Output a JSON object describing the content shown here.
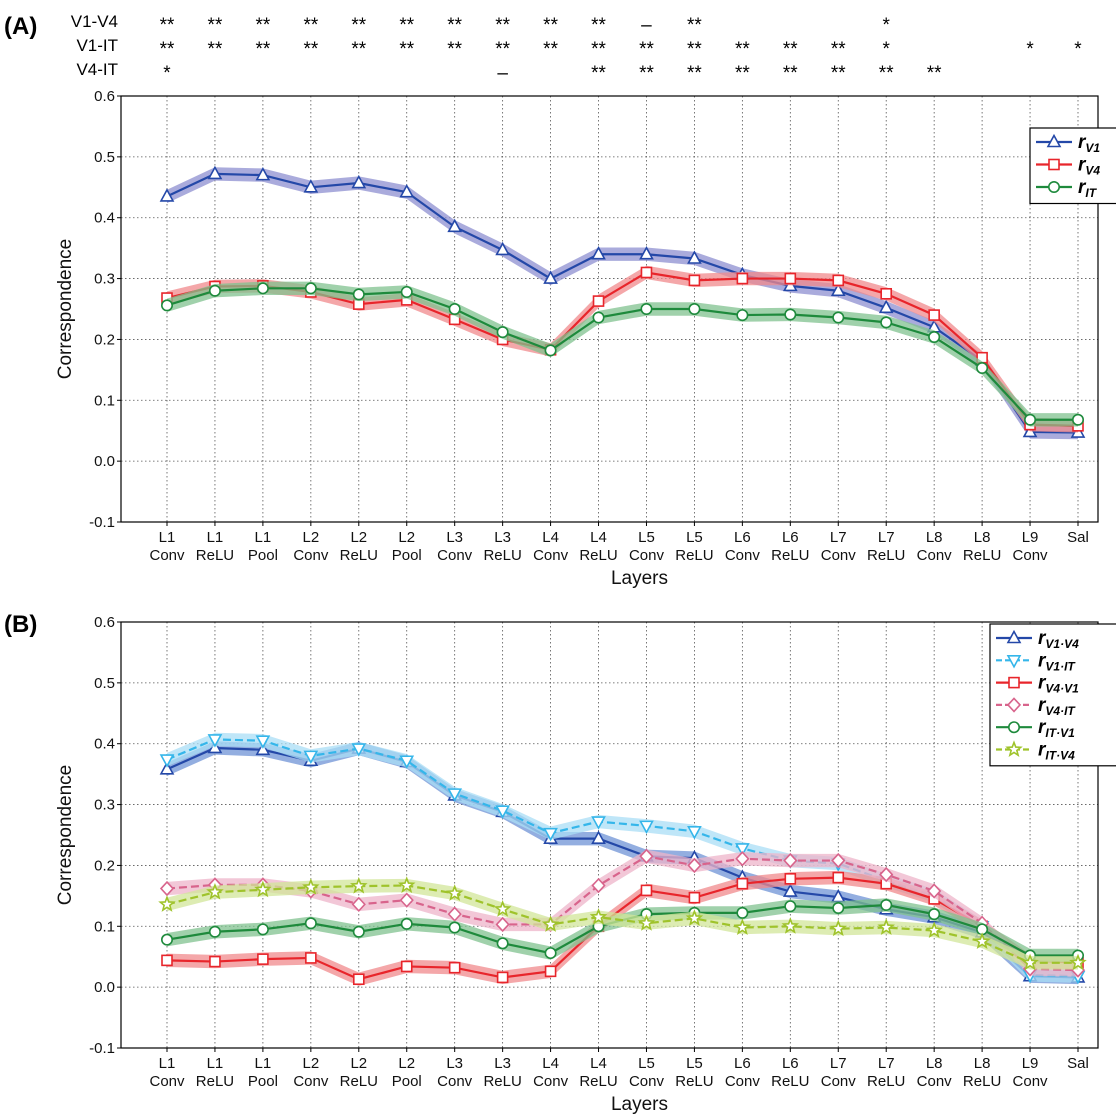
{
  "chart_data": [
    {
      "type": "line",
      "panel_label": "(A)",
      "xlabel": "Layers",
      "ylabel": "Correspondence",
      "ylim": [
        -0.1,
        0.6
      ],
      "yticks": [
        "0.6",
        "0.5",
        "0.4",
        "0.3",
        "0.2",
        "0.1",
        "0.0",
        "-0.1"
      ],
      "categories": [
        [
          "L1",
          "Conv"
        ],
        [
          "L1",
          "ReLU"
        ],
        [
          "L1",
          "Pool"
        ],
        [
          "L2",
          "Conv"
        ],
        [
          "L2",
          "ReLU"
        ],
        [
          "L2",
          "Pool"
        ],
        [
          "L3",
          "Conv"
        ],
        [
          "L3",
          "ReLU"
        ],
        [
          "L4",
          "Conv"
        ],
        [
          "L4",
          "ReLU"
        ],
        [
          "L5",
          "Conv"
        ],
        [
          "L5",
          "ReLU"
        ],
        [
          "L6",
          "Conv"
        ],
        [
          "L6",
          "ReLU"
        ],
        [
          "L7",
          "Conv"
        ],
        [
          "L7",
          "ReLU"
        ],
        [
          "L8",
          "Conv"
        ],
        [
          "L8",
          "ReLU"
        ],
        [
          "L9",
          "Conv"
        ],
        [
          "Sal",
          ""
        ]
      ],
      "grid": true,
      "legend_position": "top-right",
      "series": [
        {
          "name": "r",
          "sub": "V1",
          "color": "#2448a8",
          "band": "#8d8fd0",
          "marker": "triangle-up",
          "dash": false,
          "values": [
            0.435,
            0.472,
            0.47,
            0.45,
            0.457,
            0.442,
            0.385,
            0.347,
            0.3,
            0.34,
            0.34,
            0.333,
            0.306,
            0.288,
            0.28,
            0.252,
            0.22,
            0.165,
            0.048,
            0.047
          ]
        },
        {
          "name": "r",
          "sub": "V4",
          "color": "#e8252b",
          "band": "#f08a8c",
          "marker": "square",
          "dash": false,
          "values": [
            0.268,
            0.287,
            0.288,
            0.278,
            0.258,
            0.265,
            0.233,
            0.2,
            0.183,
            0.263,
            0.31,
            0.297,
            0.3,
            0.3,
            0.297,
            0.275,
            0.24,
            0.17,
            0.06,
            0.058
          ]
        },
        {
          "name": "r",
          "sub": "IT",
          "color": "#1e8a3c",
          "band": "#80c28f",
          "marker": "circle",
          "dash": false,
          "values": [
            0.256,
            0.28,
            0.284,
            0.284,
            0.274,
            0.278,
            0.25,
            0.212,
            0.182,
            0.236,
            0.25,
            0.25,
            0.24,
            0.241,
            0.236,
            0.228,
            0.204,
            0.153,
            0.068,
            0.068
          ]
        }
      ],
      "significance": [
        {
          "label": "V1-V4",
          "marks": [
            "**",
            "**",
            "**",
            "**",
            "**",
            "**",
            "**",
            "**",
            "**",
            "**",
            "–",
            "**",
            "",
            "",
            "",
            "*",
            "",
            "",
            "",
            ""
          ]
        },
        {
          "label": "V1-IT",
          "marks": [
            "**",
            "**",
            "**",
            "**",
            "**",
            "**",
            "**",
            "**",
            "**",
            "**",
            "**",
            "**",
            "**",
            "**",
            "**",
            "*",
            "",
            "",
            "*",
            "*"
          ]
        },
        {
          "label": "V4-IT",
          "marks": [
            "*",
            "",
            "",
            "",
            "",
            "",
            "",
            "–",
            "",
            "**",
            "**",
            "**",
            "**",
            "**",
            "**",
            "**",
            "**",
            "",
            "",
            ""
          ]
        }
      ]
    },
    {
      "type": "line",
      "panel_label": "(B)",
      "xlabel": "Layers",
      "ylabel": "Correspondence",
      "ylim": [
        -0.1,
        0.6
      ],
      "yticks": [
        "0.6",
        "0.5",
        "0.4",
        "0.3",
        "0.2",
        "0.1",
        "0.0",
        "-0.1"
      ],
      "categories": [
        [
          "L1",
          "Conv"
        ],
        [
          "L1",
          "ReLU"
        ],
        [
          "L1",
          "Pool"
        ],
        [
          "L2",
          "Conv"
        ],
        [
          "L2",
          "ReLU"
        ],
        [
          "L2",
          "Pool"
        ],
        [
          "L3",
          "Conv"
        ],
        [
          "L3",
          "ReLU"
        ],
        [
          "L4",
          "Conv"
        ],
        [
          "L4",
          "ReLU"
        ],
        [
          "L5",
          "Conv"
        ],
        [
          "L5",
          "ReLU"
        ],
        [
          "L6",
          "Conv"
        ],
        [
          "L6",
          "ReLU"
        ],
        [
          "L7",
          "Conv"
        ],
        [
          "L7",
          "ReLU"
        ],
        [
          "L8",
          "Conv"
        ],
        [
          "L8",
          "ReLU"
        ],
        [
          "L9",
          "Conv"
        ],
        [
          "Sal",
          ""
        ]
      ],
      "grid": true,
      "legend_position": "top-right",
      "series": [
        {
          "name": "r",
          "sub": "V1·V4",
          "color": "#2448a8",
          "band": "#6f93d6",
          "marker": "triangle-up",
          "dash": false,
          "values": [
            0.358,
            0.393,
            0.39,
            0.372,
            0.392,
            0.37,
            0.315,
            0.288,
            0.244,
            0.244,
            0.215,
            0.212,
            0.18,
            0.157,
            0.148,
            0.128,
            0.115,
            0.09,
            0.018,
            0.016
          ]
        },
        {
          "name": "r",
          "sub": "V1·IT",
          "color": "#35b6ea",
          "band": "#a9def6",
          "marker": "triangle-down",
          "dash": true,
          "values": [
            0.374,
            0.407,
            0.405,
            0.38,
            0.392,
            0.372,
            0.318,
            0.29,
            0.253,
            0.272,
            0.265,
            0.256,
            0.228,
            0.208,
            0.203,
            0.175,
            0.15,
            0.1,
            0.02,
            0.018
          ]
        },
        {
          "name": "r",
          "sub": "V4·V1",
          "color": "#e8252b",
          "band": "#f08a8c",
          "marker": "square",
          "dash": false,
          "values": [
            0.044,
            0.042,
            0.046,
            0.048,
            0.013,
            0.034,
            0.032,
            0.016,
            0.026,
            0.1,
            0.159,
            0.147,
            0.17,
            0.178,
            0.18,
            0.17,
            0.145,
            0.1,
            0.043,
            0.04
          ]
        },
        {
          "name": "r",
          "sub": "V4·IT",
          "color": "#d8648c",
          "band": "#eeb4c9",
          "marker": "diamond",
          "dash": true,
          "values": [
            0.162,
            0.168,
            0.168,
            0.158,
            0.136,
            0.143,
            0.12,
            0.103,
            0.103,
            0.167,
            0.215,
            0.2,
            0.211,
            0.208,
            0.208,
            0.185,
            0.158,
            0.105,
            0.03,
            0.028
          ]
        },
        {
          "name": "r",
          "sub": "IT·V1",
          "color": "#1e8a3c",
          "band": "#80c28f",
          "marker": "circle",
          "dash": false,
          "values": [
            0.078,
            0.091,
            0.095,
            0.105,
            0.091,
            0.104,
            0.098,
            0.072,
            0.056,
            0.1,
            0.12,
            0.122,
            0.122,
            0.133,
            0.13,
            0.135,
            0.12,
            0.095,
            0.052,
            0.052
          ]
        },
        {
          "name": "r",
          "sub": "IT·V4",
          "color": "#9fc32b",
          "band": "#d2e59a",
          "marker": "star",
          "dash": true,
          "values": [
            0.136,
            0.156,
            0.16,
            0.164,
            0.166,
            0.167,
            0.154,
            0.128,
            0.103,
            0.115,
            0.105,
            0.113,
            0.098,
            0.1,
            0.096,
            0.098,
            0.093,
            0.075,
            0.04,
            0.04
          ]
        }
      ]
    }
  ]
}
